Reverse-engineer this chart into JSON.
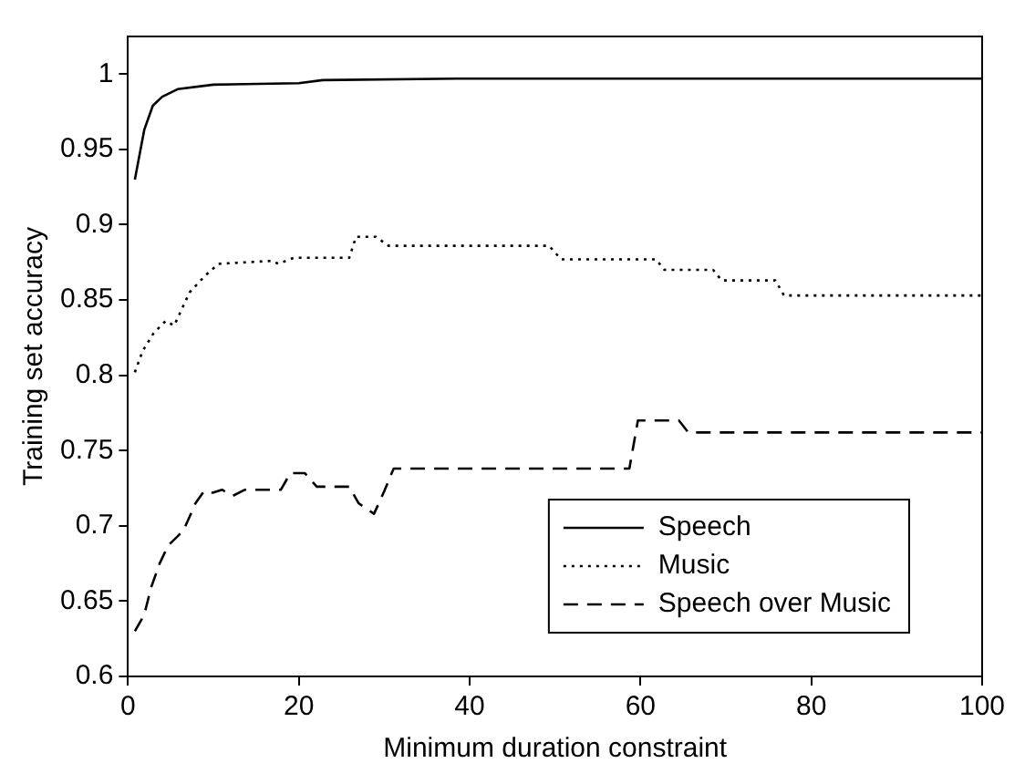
{
  "chart_data": {
    "type": "line",
    "xlabel": "Minimum duration constraint",
    "ylabel": "Training set accuracy",
    "xlim": [
      0,
      100
    ],
    "ylim": [
      0.6,
      1.025
    ],
    "xticks": [
      0,
      20,
      40,
      60,
      80,
      100
    ],
    "yticks": [
      0.6,
      0.65,
      0.7,
      0.75,
      0.8,
      0.85,
      0.9,
      0.95,
      1
    ],
    "grid": false,
    "legend": "bottom right",
    "marker": "none",
    "series": [
      {
        "name": "Speech",
        "color": "#000000",
        "line_style": "solid",
        "x": [
          0.8,
          1.9,
          2.9,
          4,
          5.8,
          10,
          20,
          22.8,
          38.5,
          100
        ],
        "values": [
          0.93,
          0.963,
          0.979,
          0.985,
          0.99,
          0.993,
          0.994,
          0.996,
          0.997,
          0.997
        ]
      },
      {
        "name": "Music",
        "color": "#000000",
        "line_style": "dotted",
        "x": [
          0.8,
          1.7,
          3,
          4.4,
          5.4,
          7.2,
          9,
          10.6,
          16.9,
          17.6,
          19.4,
          25.9,
          26.7,
          29,
          30.5,
          49.3,
          50.7,
          61.8,
          62.8,
          68.5,
          69.5,
          75.8,
          76.8,
          100
        ],
        "values": [
          0.802,
          0.816,
          0.828,
          0.836,
          0.833,
          0.855,
          0.866,
          0.874,
          0.876,
          0.874,
          0.878,
          0.878,
          0.892,
          0.892,
          0.886,
          0.886,
          0.877,
          0.877,
          0.87,
          0.87,
          0.863,
          0.863,
          0.853,
          0.853
        ]
      },
      {
        "name": "Speech over Music",
        "color": "#000000",
        "line_style": "dashed",
        "x": [
          0.8,
          1.9,
          2.7,
          3.7,
          4.7,
          5.8,
          6.5,
          7.9,
          8.9,
          9.9,
          11,
          12.3,
          13.7,
          17.9,
          19,
          20.7,
          22.1,
          25.9,
          27,
          28.8,
          30,
          31.1,
          58.7,
          59.7,
          64.5,
          65.6,
          100
        ],
        "values": [
          0.63,
          0.641,
          0.659,
          0.675,
          0.687,
          0.693,
          0.697,
          0.715,
          0.723,
          0.722,
          0.724,
          0.72,
          0.724,
          0.724,
          0.735,
          0.735,
          0.726,
          0.726,
          0.715,
          0.708,
          0.723,
          0.738,
          0.738,
          0.77,
          0.77,
          0.762,
          0.762
        ]
      }
    ]
  }
}
